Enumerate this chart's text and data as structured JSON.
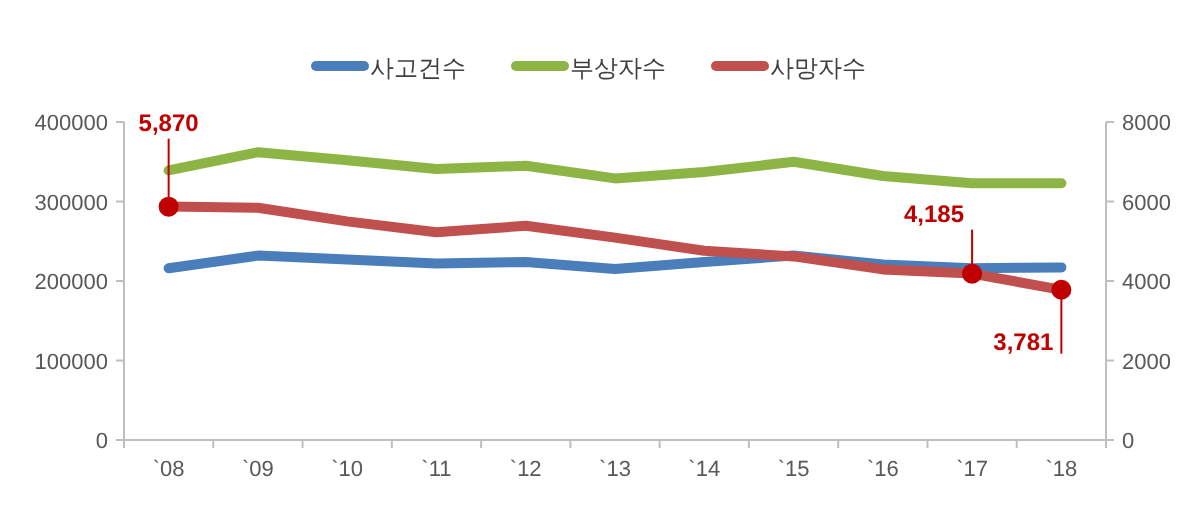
{
  "chart_data": {
    "type": "line",
    "categories": [
      "`08",
      "`09",
      "`10",
      "`11",
      "`12",
      "`13",
      "`14",
      "`15",
      "`16",
      "`17",
      "`18"
    ],
    "series": [
      {
        "name": "사고건수",
        "color": "#4a7ebb",
        "values": [
          216000,
          232000,
          227000,
          222000,
          224000,
          215000,
          224000,
          232000,
          221000,
          216000,
          217000
        ]
      },
      {
        "name": "부상자수",
        "color": "#8db545",
        "values": [
          339000,
          362000,
          352000,
          341000,
          345000,
          329000,
          337000,
          350000,
          332000,
          323000,
          323000
        ]
      },
      {
        "name": "사망자수",
        "color": "#c0504d",
        "axis": "y2",
        "values": [
          5870,
          5840,
          5500,
          5230,
          5390,
          5090,
          4760,
          4620,
          4290,
          4185,
          3781
        ],
        "value_labels": [
          "5,870",
          null,
          null,
          null,
          null,
          null,
          null,
          null,
          null,
          "4,185",
          "3,781"
        ]
      }
    ],
    "ylim": [
      0,
      400000
    ],
    "yticks": [
      0,
      100000,
      200000,
      300000,
      400000
    ],
    "y2lim": [
      0,
      8000
    ],
    "y2ticks": [
      0,
      2000,
      4000,
      6000,
      8000
    ],
    "grid": false,
    "legend": "top",
    "line_style": "solid"
  }
}
